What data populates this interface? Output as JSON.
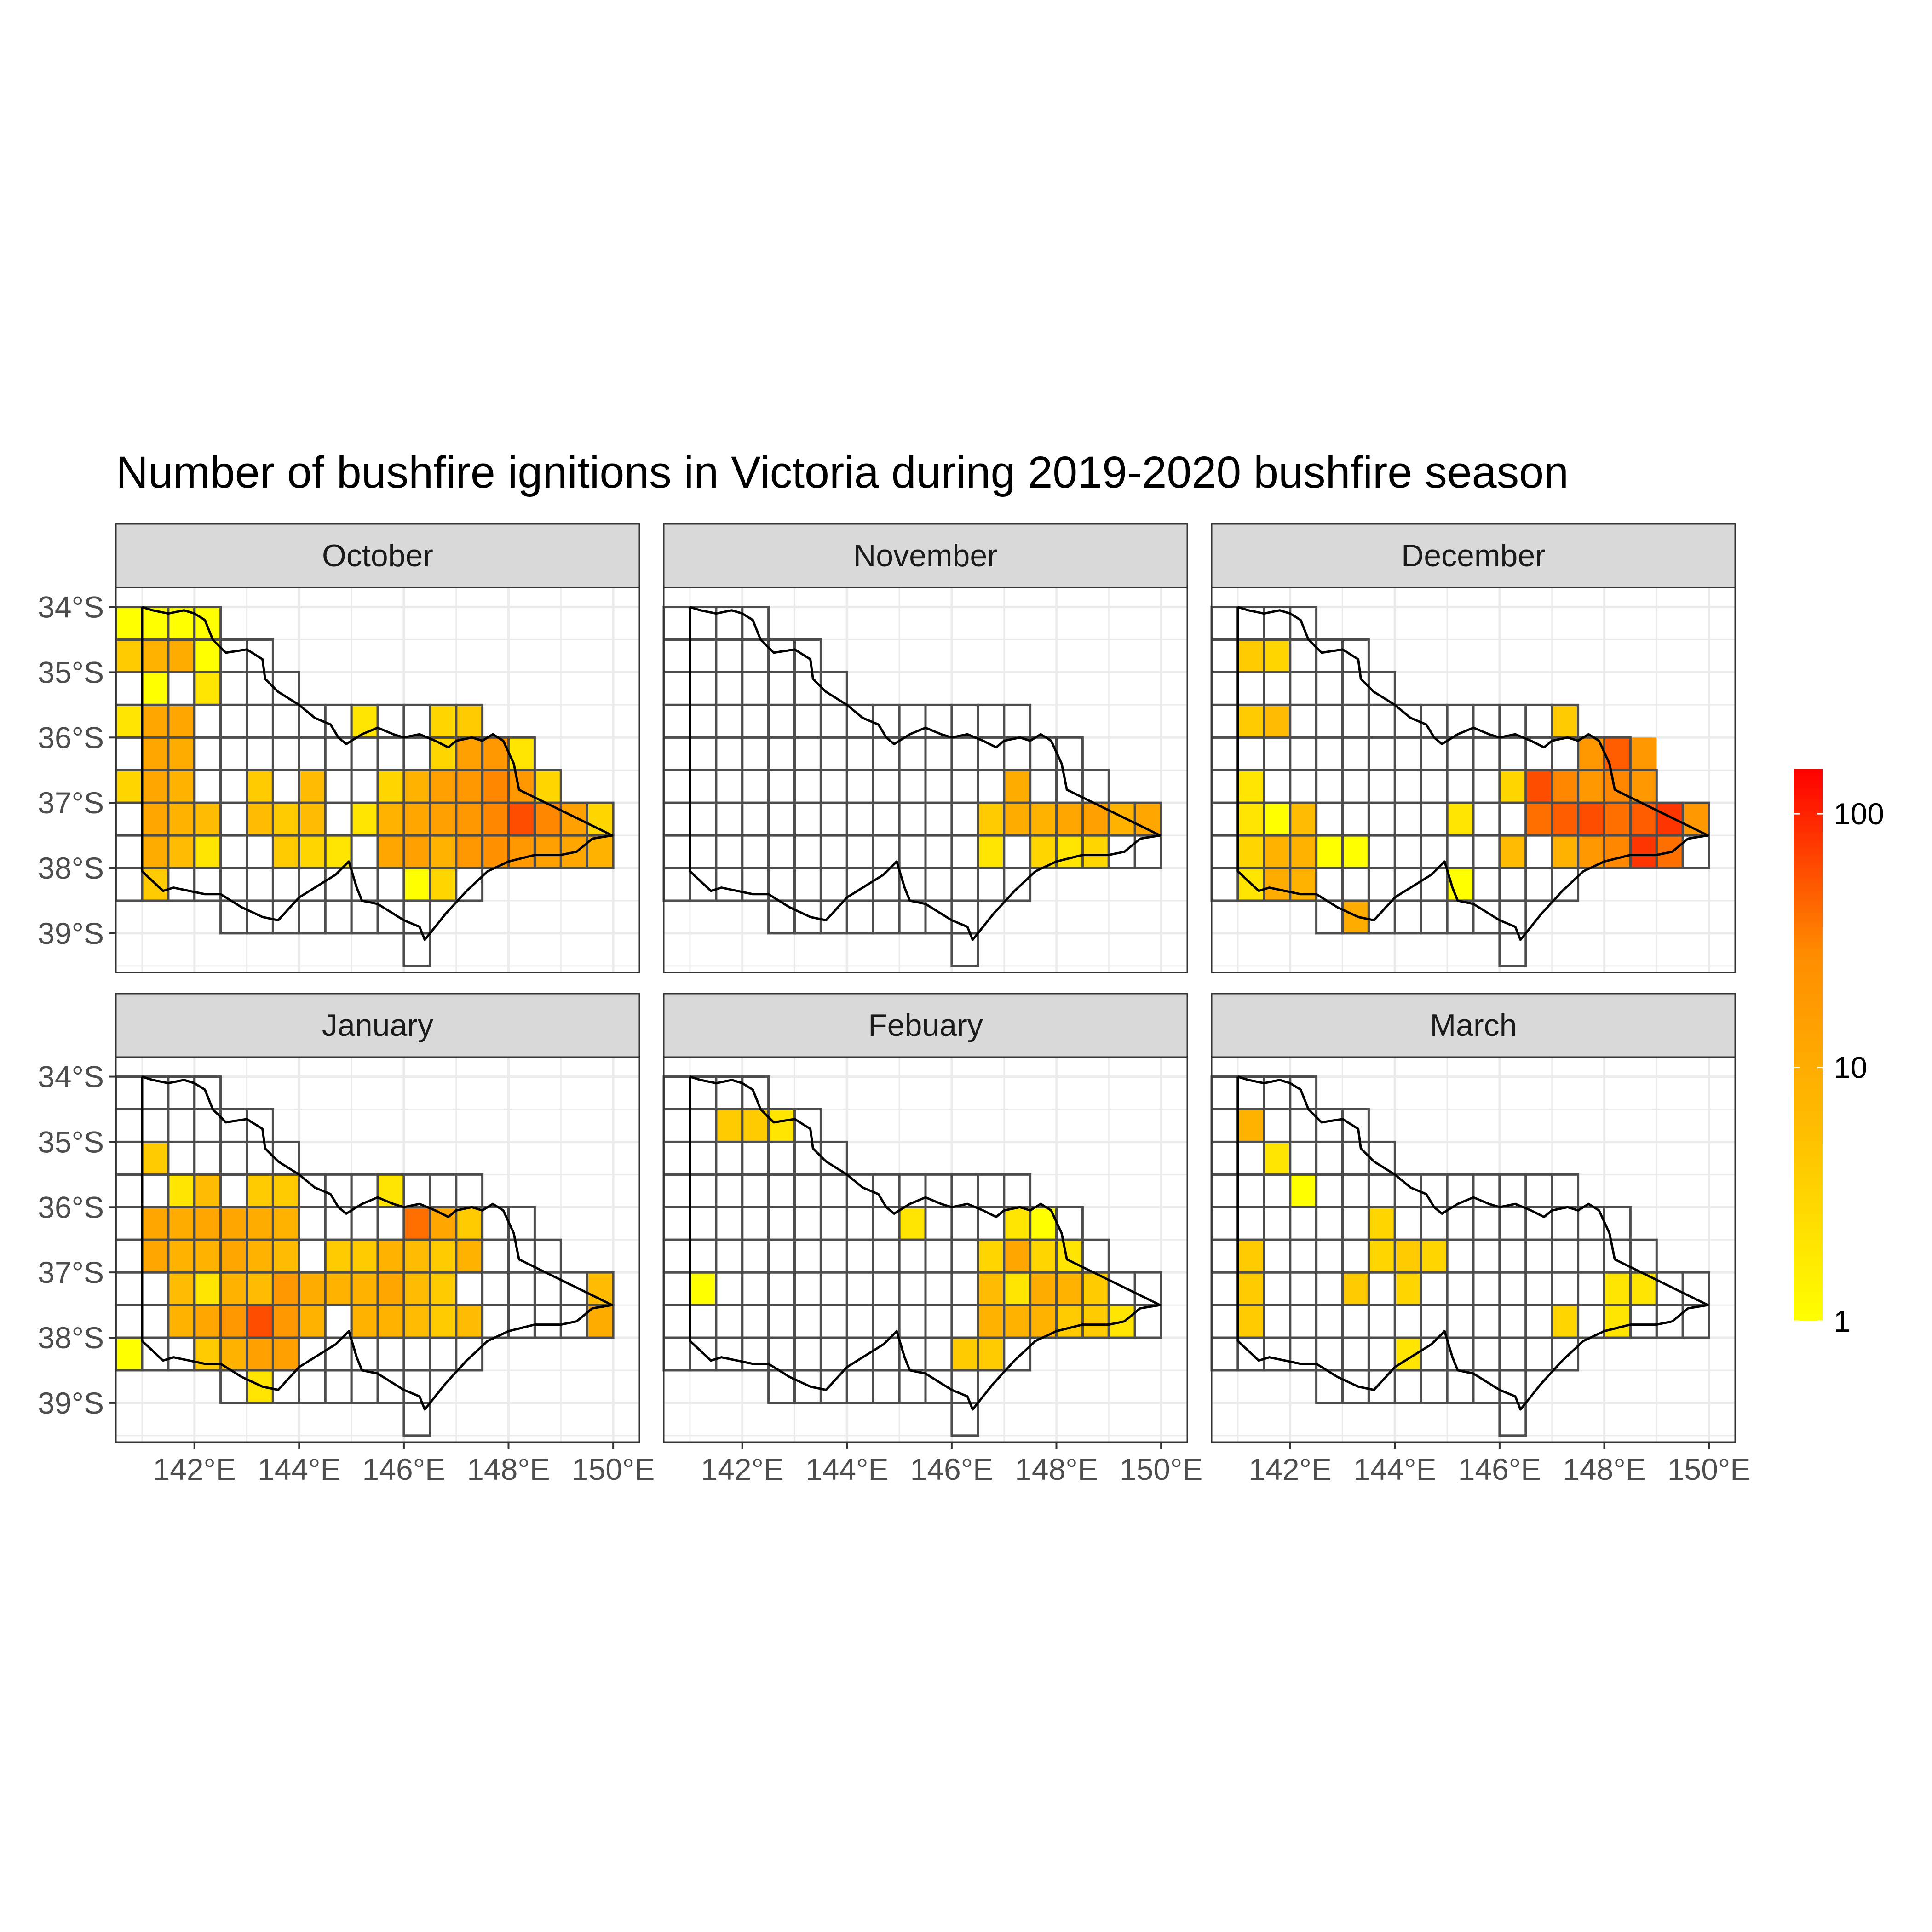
{
  "chart_data": {
    "type": "heatmap",
    "title": "Number of bushfire ignitions in Victoria during 2019-2020 bushfire season",
    "xlabel": "",
    "ylabel": "",
    "x_ticks": [
      142,
      144,
      146,
      148,
      150
    ],
    "x_tick_labels": [
      "142°E",
      "144°E",
      "146°E",
      "148°E",
      "150°E"
    ],
    "y_ticks": [
      -34,
      -35,
      -36,
      -37,
      -38,
      -39
    ],
    "y_tick_labels": [
      "34°S",
      "35°S",
      "36°S",
      "37°S",
      "38°S",
      "39°S"
    ],
    "xlim": [
      140.5,
      150.5
    ],
    "ylim": [
      -39.6,
      -33.7
    ],
    "cell_size_deg": 0.5,
    "grid": true,
    "legend": {
      "scale": "log10",
      "min": 1,
      "max": 150,
      "tick_values": [
        1,
        10,
        100
      ],
      "tick_labels": [
        "1",
        "10",
        "100"
      ],
      "position": "right",
      "colors": [
        "#FFFF00",
        "#FFC000",
        "#FF8C00",
        "#FF0000"
      ]
    },
    "boundary_color": "#000000",
    "cell_border_color": "#4d4d4d",
    "strip_color": "#d9d9d9",
    "facets": [
      {
        "label": "October",
        "cells": [
          [
            140.75,
            -34.25,
            1
          ],
          [
            141.25,
            -34.25,
            1
          ],
          [
            141.75,
            -34.25,
            1
          ],
          [
            142.25,
            -34.25,
            1
          ],
          [
            140.75,
            -34.75,
            4
          ],
          [
            141.25,
            -34.75,
            8
          ],
          [
            141.75,
            -34.75,
            10
          ],
          [
            142.25,
            -34.75,
            1
          ],
          [
            141.25,
            -35.25,
            1
          ],
          [
            142.25,
            -35.25,
            2
          ],
          [
            140.75,
            -35.75,
            2
          ],
          [
            141.25,
            -35.75,
            12
          ],
          [
            141.75,
            -35.75,
            12
          ],
          [
            145.25,
            -35.75,
            2
          ],
          [
            146.75,
            -35.75,
            3
          ],
          [
            147.25,
            -35.75,
            4
          ],
          [
            141.25,
            -36.25,
            12
          ],
          [
            141.75,
            -36.25,
            10
          ],
          [
            146.75,
            -36.25,
            3
          ],
          [
            147.25,
            -36.25,
            15
          ],
          [
            147.75,
            -36.25,
            20
          ],
          [
            148.25,
            -36.25,
            2
          ],
          [
            140.75,
            -36.75,
            3
          ],
          [
            141.25,
            -36.75,
            12
          ],
          [
            141.75,
            -36.75,
            8
          ],
          [
            143.25,
            -36.75,
            4
          ],
          [
            144.25,
            -36.75,
            6
          ],
          [
            145.75,
            -36.75,
            3
          ],
          [
            146.25,
            -36.75,
            8
          ],
          [
            146.75,
            -36.75,
            15
          ],
          [
            147.25,
            -36.75,
            20
          ],
          [
            147.75,
            -36.75,
            30
          ],
          [
            148.25,
            -36.75,
            20
          ],
          [
            148.75,
            -36.75,
            3
          ],
          [
            141.25,
            -37.25,
            12
          ],
          [
            141.75,
            -37.25,
            8
          ],
          [
            142.25,
            -37.25,
            6
          ],
          [
            143.25,
            -37.25,
            6
          ],
          [
            143.75,
            -37.25,
            4
          ],
          [
            144.25,
            -37.25,
            6
          ],
          [
            145.25,
            -37.25,
            2
          ],
          [
            145.75,
            -37.25,
            8
          ],
          [
            146.25,
            -37.25,
            12
          ],
          [
            146.75,
            -37.25,
            15
          ],
          [
            147.25,
            -37.25,
            20
          ],
          [
            147.75,
            -37.25,
            30
          ],
          [
            148.25,
            -37.25,
            60
          ],
          [
            148.75,
            -37.25,
            30
          ],
          [
            149.25,
            -37.25,
            15
          ],
          [
            149.75,
            -37.25,
            3
          ],
          [
            141.25,
            -37.75,
            10
          ],
          [
            141.75,
            -37.75,
            6
          ],
          [
            142.25,
            -37.75,
            2
          ],
          [
            143.75,
            -37.75,
            4
          ],
          [
            144.25,
            -37.75,
            3
          ],
          [
            144.75,
            -37.75,
            2
          ],
          [
            145.75,
            -37.75,
            12
          ],
          [
            146.25,
            -37.75,
            15
          ],
          [
            146.75,
            -37.75,
            8
          ],
          [
            147.25,
            -37.75,
            20
          ],
          [
            147.75,
            -37.75,
            25
          ],
          [
            148.25,
            -37.75,
            20
          ],
          [
            148.75,
            -37.75,
            15
          ],
          [
            149.25,
            -37.75,
            12
          ],
          [
            149.75,
            -37.75,
            8
          ],
          [
            141.25,
            -38.25,
            4
          ],
          [
            146.25,
            -38.25,
            1
          ],
          [
            146.75,
            -38.25,
            3
          ]
        ]
      },
      {
        "label": "November",
        "cells": [
          [
            147.25,
            -36.75,
            10
          ],
          [
            146.75,
            -37.25,
            4
          ],
          [
            147.25,
            -37.25,
            10
          ],
          [
            147.75,
            -37.25,
            8
          ],
          [
            148.25,
            -37.25,
            12
          ],
          [
            148.75,
            -37.25,
            15
          ],
          [
            149.25,
            -37.25,
            8
          ],
          [
            149.75,
            -37.25,
            12
          ],
          [
            146.75,
            -37.75,
            2
          ],
          [
            147.75,
            -37.75,
            3
          ],
          [
            148.25,
            -37.75,
            2
          ],
          [
            148.75,
            -37.75,
            3
          ]
        ]
      },
      {
        "label": "December",
        "cells": [
          [
            141.25,
            -34.75,
            4
          ],
          [
            141.75,
            -34.75,
            3
          ],
          [
            141.25,
            -35.75,
            4
          ],
          [
            141.75,
            -35.75,
            6
          ],
          [
            147.25,
            -35.75,
            4
          ],
          [
            147.75,
            -36.25,
            20
          ],
          [
            148.25,
            -36.25,
            50
          ],
          [
            148.75,
            -36.25,
            20
          ],
          [
            141.25,
            -36.75,
            2
          ],
          [
            146.25,
            -36.75,
            3
          ],
          [
            146.75,
            -36.75,
            60
          ],
          [
            147.25,
            -36.75,
            30
          ],
          [
            147.75,
            -36.75,
            20
          ],
          [
            148.25,
            -36.75,
            30
          ],
          [
            148.75,
            -36.75,
            20
          ],
          [
            141.25,
            -37.25,
            2
          ],
          [
            141.75,
            -37.25,
            1
          ],
          [
            142.25,
            -37.25,
            6
          ],
          [
            145.25,
            -37.25,
            2
          ],
          [
            146.75,
            -37.25,
            40
          ],
          [
            147.25,
            -37.25,
            50
          ],
          [
            147.75,
            -37.25,
            60
          ],
          [
            148.25,
            -37.25,
            40
          ],
          [
            148.75,
            -37.25,
            50
          ],
          [
            149.25,
            -37.25,
            80
          ],
          [
            149.75,
            -37.25,
            20
          ],
          [
            141.25,
            -37.75,
            3
          ],
          [
            141.75,
            -37.75,
            8
          ],
          [
            142.25,
            -37.75,
            8
          ],
          [
            142.75,
            -37.75,
            1
          ],
          [
            143.25,
            -37.75,
            1
          ],
          [
            146.25,
            -37.75,
            6
          ],
          [
            147.25,
            -37.75,
            8
          ],
          [
            147.75,
            -37.75,
            20
          ],
          [
            148.25,
            -37.75,
            30
          ],
          [
            148.75,
            -37.75,
            80
          ],
          [
            149.25,
            -37.75,
            40
          ],
          [
            141.25,
            -38.25,
            2
          ],
          [
            141.75,
            -38.25,
            10
          ],
          [
            142.25,
            -38.25,
            8
          ],
          [
            145.25,
            -38.25,
            1
          ],
          [
            143.25,
            -38.75,
            10
          ]
        ]
      },
      {
        "label": "January",
        "cells": [
          [
            141.25,
            -35.25,
            4
          ],
          [
            141.75,
            -35.75,
            2
          ],
          [
            142.25,
            -35.75,
            6
          ],
          [
            143.25,
            -35.75,
            4
          ],
          [
            143.75,
            -35.75,
            4
          ],
          [
            145.75,
            -35.75,
            2
          ],
          [
            141.25,
            -36.25,
            12
          ],
          [
            141.75,
            -36.25,
            10
          ],
          [
            142.25,
            -36.25,
            12
          ],
          [
            142.75,
            -36.25,
            12
          ],
          [
            143.25,
            -36.25,
            10
          ],
          [
            143.75,
            -36.25,
            8
          ],
          [
            146.25,
            -36.25,
            40
          ],
          [
            146.75,
            -36.25,
            12
          ],
          [
            147.25,
            -36.25,
            4
          ],
          [
            141.25,
            -36.75,
            12
          ],
          [
            141.75,
            -36.75,
            8
          ],
          [
            142.25,
            -36.75,
            8
          ],
          [
            142.75,
            -36.75,
            12
          ],
          [
            143.25,
            -36.75,
            8
          ],
          [
            143.75,
            -36.75,
            6
          ],
          [
            144.75,
            -36.75,
            4
          ],
          [
            145.25,
            -36.75,
            4
          ],
          [
            145.75,
            -36.75,
            8
          ],
          [
            146.25,
            -36.75,
            6
          ],
          [
            146.75,
            -36.75,
            4
          ],
          [
            147.25,
            -36.75,
            8
          ],
          [
            141.75,
            -37.25,
            6
          ],
          [
            142.25,
            -37.25,
            2
          ],
          [
            142.75,
            -37.25,
            8
          ],
          [
            143.25,
            -37.25,
            6
          ],
          [
            143.75,
            -37.25,
            20
          ],
          [
            144.25,
            -37.25,
            10
          ],
          [
            144.75,
            -37.25,
            8
          ],
          [
            145.25,
            -37.25,
            8
          ],
          [
            145.75,
            -37.25,
            12
          ],
          [
            146.25,
            -37.25,
            6
          ],
          [
            146.75,
            -37.25,
            4
          ],
          [
            149.75,
            -37.25,
            6
          ],
          [
            141.75,
            -37.75,
            8
          ],
          [
            142.25,
            -37.75,
            12
          ],
          [
            142.75,
            -37.75,
            20
          ],
          [
            143.25,
            -37.75,
            60
          ],
          [
            143.75,
            -37.75,
            20
          ],
          [
            144.25,
            -37.75,
            8
          ],
          [
            145.25,
            -37.75,
            8
          ],
          [
            145.75,
            -37.75,
            8
          ],
          [
            146.25,
            -37.75,
            6
          ],
          [
            146.75,
            -37.75,
            4
          ],
          [
            147.25,
            -37.75,
            6
          ],
          [
            149.75,
            -37.75,
            10
          ],
          [
            140.75,
            -38.25,
            1
          ],
          [
            142.25,
            -38.25,
            4
          ],
          [
            142.75,
            -38.25,
            8
          ],
          [
            143.25,
            -38.25,
            15
          ],
          [
            143.75,
            -38.25,
            15
          ],
          [
            143.25,
            -38.75,
            2
          ]
        ]
      },
      {
        "label": "Febuary",
        "cells": [
          [
            141.75,
            -34.75,
            4
          ],
          [
            142.25,
            -34.75,
            4
          ],
          [
            142.75,
            -34.75,
            2
          ],
          [
            145.25,
            -36.25,
            2
          ],
          [
            147.25,
            -36.25,
            2
          ],
          [
            147.75,
            -36.25,
            1
          ],
          [
            146.75,
            -36.75,
            3
          ],
          [
            147.25,
            -36.75,
            12
          ],
          [
            147.75,
            -36.75,
            3
          ],
          [
            148.25,
            -36.75,
            2
          ],
          [
            141.25,
            -37.25,
            1
          ],
          [
            146.75,
            -37.25,
            6
          ],
          [
            147.25,
            -37.25,
            2
          ],
          [
            147.75,
            -37.25,
            10
          ],
          [
            148.25,
            -37.25,
            8
          ],
          [
            148.75,
            -37.25,
            4
          ],
          [
            146.75,
            -37.75,
            8
          ],
          [
            147.25,
            -37.75,
            8
          ],
          [
            147.75,
            -37.75,
            8
          ],
          [
            148.25,
            -37.75,
            4
          ],
          [
            148.75,
            -37.75,
            4
          ],
          [
            149.25,
            -37.75,
            2
          ],
          [
            146.25,
            -38.25,
            4
          ],
          [
            146.75,
            -38.25,
            4
          ]
        ]
      },
      {
        "label": "March",
        "cells": [
          [
            141.25,
            -34.75,
            8
          ],
          [
            141.75,
            -35.25,
            2
          ],
          [
            142.25,
            -35.75,
            1
          ],
          [
            143.75,
            -36.25,
            3
          ],
          [
            141.25,
            -36.75,
            4
          ],
          [
            143.75,
            -36.75,
            3
          ],
          [
            144.25,
            -36.75,
            4
          ],
          [
            144.75,
            -36.75,
            3
          ],
          [
            141.25,
            -37.25,
            4
          ],
          [
            143.25,
            -37.25,
            4
          ],
          [
            144.25,
            -37.25,
            3
          ],
          [
            148.25,
            -37.25,
            2
          ],
          [
            148.75,
            -37.25,
            2
          ],
          [
            141.25,
            -37.75,
            4
          ],
          [
            147.25,
            -37.75,
            3
          ],
          [
            148.25,
            -37.75,
            2
          ],
          [
            144.25,
            -38.25,
            2
          ]
        ]
      }
    ]
  }
}
